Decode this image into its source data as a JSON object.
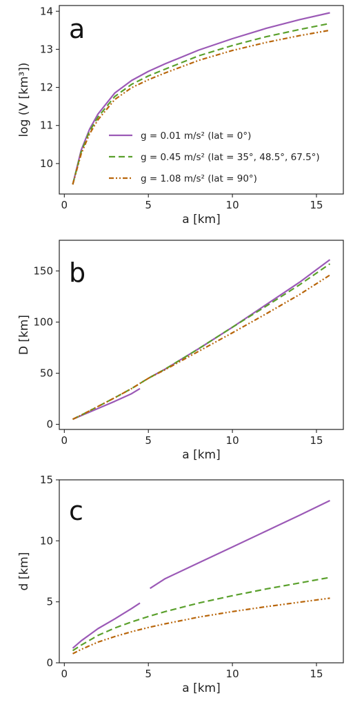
{
  "colors": {
    "purple": "#9b59b6",
    "green": "#5aa02c",
    "brown": "#b8650a"
  },
  "chart_data": [
    {
      "type": "line",
      "panel_label": "a",
      "xlabel": "a [km]",
      "ylabel": "log (V [km³])",
      "xlim": [
        -0.3,
        16.6
      ],
      "ylim": [
        9.2,
        14.15
      ],
      "xticks": [
        "0",
        "5",
        "10",
        "15"
      ],
      "yticks": [
        "10",
        "11",
        "12",
        "13",
        "14"
      ],
      "legend_position": "center-right",
      "legend": [
        {
          "text": "g = 0.01 m/s² (lat = 0°)",
          "color": "purple",
          "dash": "solid"
        },
        {
          "text": "g = 0.45 m/s² (lat = 35°, 48.5°, 67.5°)",
          "color": "green",
          "dash": "dashed"
        },
        {
          "text": "g = 1.08 m/s² (lat = 90°)",
          "color": "brown",
          "dash": "dashdotdot"
        }
      ],
      "series": [
        {
          "name": "g = 0.01 m/s² (lat = 0°)",
          "color": "purple",
          "dash": "solid",
          "x": [
            0.5,
            1,
            1.5,
            2,
            3,
            4,
            5,
            6,
            8,
            10,
            12,
            14,
            15.8
          ],
          "y": [
            9.45,
            10.35,
            10.9,
            11.3,
            11.85,
            12.18,
            12.42,
            12.62,
            12.98,
            13.28,
            13.55,
            13.78,
            13.96
          ]
        },
        {
          "name": "g = 0.45 m/s² (lat = 35°, 48.5°, 67.5°)",
          "color": "green",
          "dash": "dashed",
          "x": [
            0.5,
            1,
            1.5,
            2,
            3,
            4,
            5,
            6,
            8,
            10,
            12,
            14,
            15.8
          ],
          "y": [
            9.45,
            10.3,
            10.85,
            11.22,
            11.76,
            12.08,
            12.3,
            12.48,
            12.83,
            13.1,
            13.33,
            13.52,
            13.68
          ]
        },
        {
          "name": "g = 1.08 m/s² (lat = 90°)",
          "color": "brown",
          "dash": "dashdotdot",
          "x": [
            0.5,
            1,
            1.5,
            2,
            3,
            4,
            5,
            6,
            8,
            10,
            12,
            14,
            15.8
          ],
          "y": [
            9.45,
            10.25,
            10.78,
            11.15,
            11.68,
            11.99,
            12.2,
            12.38,
            12.71,
            12.97,
            13.18,
            13.36,
            13.5
          ]
        }
      ]
    },
    {
      "type": "line",
      "panel_label": "b",
      "xlabel": "a [km]",
      "ylabel": "D [km]",
      "xlim": [
        -0.3,
        16.6
      ],
      "ylim": [
        -5,
        180
      ],
      "xticks": [
        "0",
        "5",
        "10",
        "15"
      ],
      "yticks": [
        "0",
        "50",
        "100",
        "150"
      ],
      "series": [
        {
          "name": "g = 0.01 m/s² (lat = 0°)",
          "color": "purple",
          "dash": "solid",
          "segments": [
            {
              "x": [
                0.5,
                1,
                2,
                3,
                4,
                4.5
              ],
              "y": [
                5,
                8.5,
                15.5,
                22.5,
                30,
                35
              ]
            },
            {
              "x": [
                5.1,
                6,
                8,
                10,
                12,
                14,
                15.8
              ],
              "y": [
                46,
                54,
                74,
                95,
                117,
                139,
                161
              ]
            }
          ]
        },
        {
          "name": "g = 0.45 m/s² (lat = 35°, 48.5°, 67.5°)",
          "color": "green",
          "dash": "dashed",
          "x": [
            0.5,
            1,
            2,
            3,
            4,
            5,
            6,
            8,
            10,
            12,
            14,
            15.8
          ],
          "y": [
            5,
            9,
            17.5,
            26,
            35,
            45,
            54,
            74,
            95,
            115.5,
            136.5,
            157
          ]
        },
        {
          "name": "g = 1.08 m/s² (lat = 90°)",
          "color": "brown",
          "dash": "dashdotdot",
          "x": [
            0.5,
            1,
            2,
            3,
            4,
            5,
            6,
            8,
            10,
            12,
            14,
            15.8
          ],
          "y": [
            5,
            9,
            17.5,
            26,
            35,
            45,
            53.5,
            71.5,
            89.5,
            108,
            127,
            146
          ]
        }
      ]
    },
    {
      "type": "line",
      "panel_label": "c",
      "xlabel": "a [km]",
      "ylabel": "d [km]",
      "xlim": [
        -0.3,
        16.6
      ],
      "ylim": [
        0,
        15
      ],
      "xticks": [
        "0",
        "5",
        "10",
        "15"
      ],
      "yticks": [
        "0",
        "5",
        "10",
        "15"
      ],
      "series": [
        {
          "name": "g = 0.01 m/s² (lat = 0°)",
          "color": "purple",
          "dash": "solid",
          "segments": [
            {
              "x": [
                0.5,
                1,
                1.5,
                2,
                3,
                4,
                4.5
              ],
              "y": [
                1.2,
                1.8,
                2.3,
                2.8,
                3.6,
                4.45,
                4.9
              ]
            },
            {
              "x": [
                5.1,
                6,
                8,
                10,
                12,
                14,
                15.8
              ],
              "y": [
                6.1,
                6.9,
                8.2,
                9.5,
                10.8,
                12.1,
                13.3
              ]
            }
          ]
        },
        {
          "name": "g = 0.45 m/s² (lat = 35°, 48.5°, 67.5°)",
          "color": "green",
          "dash": "dashed",
          "x": [
            0.5,
            1,
            2,
            3,
            4,
            5,
            6,
            8,
            10,
            12,
            14,
            15.8
          ],
          "y": [
            1.0,
            1.45,
            2.25,
            2.85,
            3.35,
            3.8,
            4.2,
            4.9,
            5.5,
            6.05,
            6.55,
            7.0
          ]
        },
        {
          "name": "g = 1.08 m/s² (lat = 90°)",
          "color": "brown",
          "dash": "dashdotdot",
          "x": [
            0.5,
            1,
            2,
            3,
            4,
            5,
            6,
            8,
            10,
            12,
            14,
            15.8
          ],
          "y": [
            0.75,
            1.1,
            1.7,
            2.15,
            2.55,
            2.9,
            3.2,
            3.75,
            4.2,
            4.6,
            4.97,
            5.3
          ]
        }
      ]
    }
  ]
}
